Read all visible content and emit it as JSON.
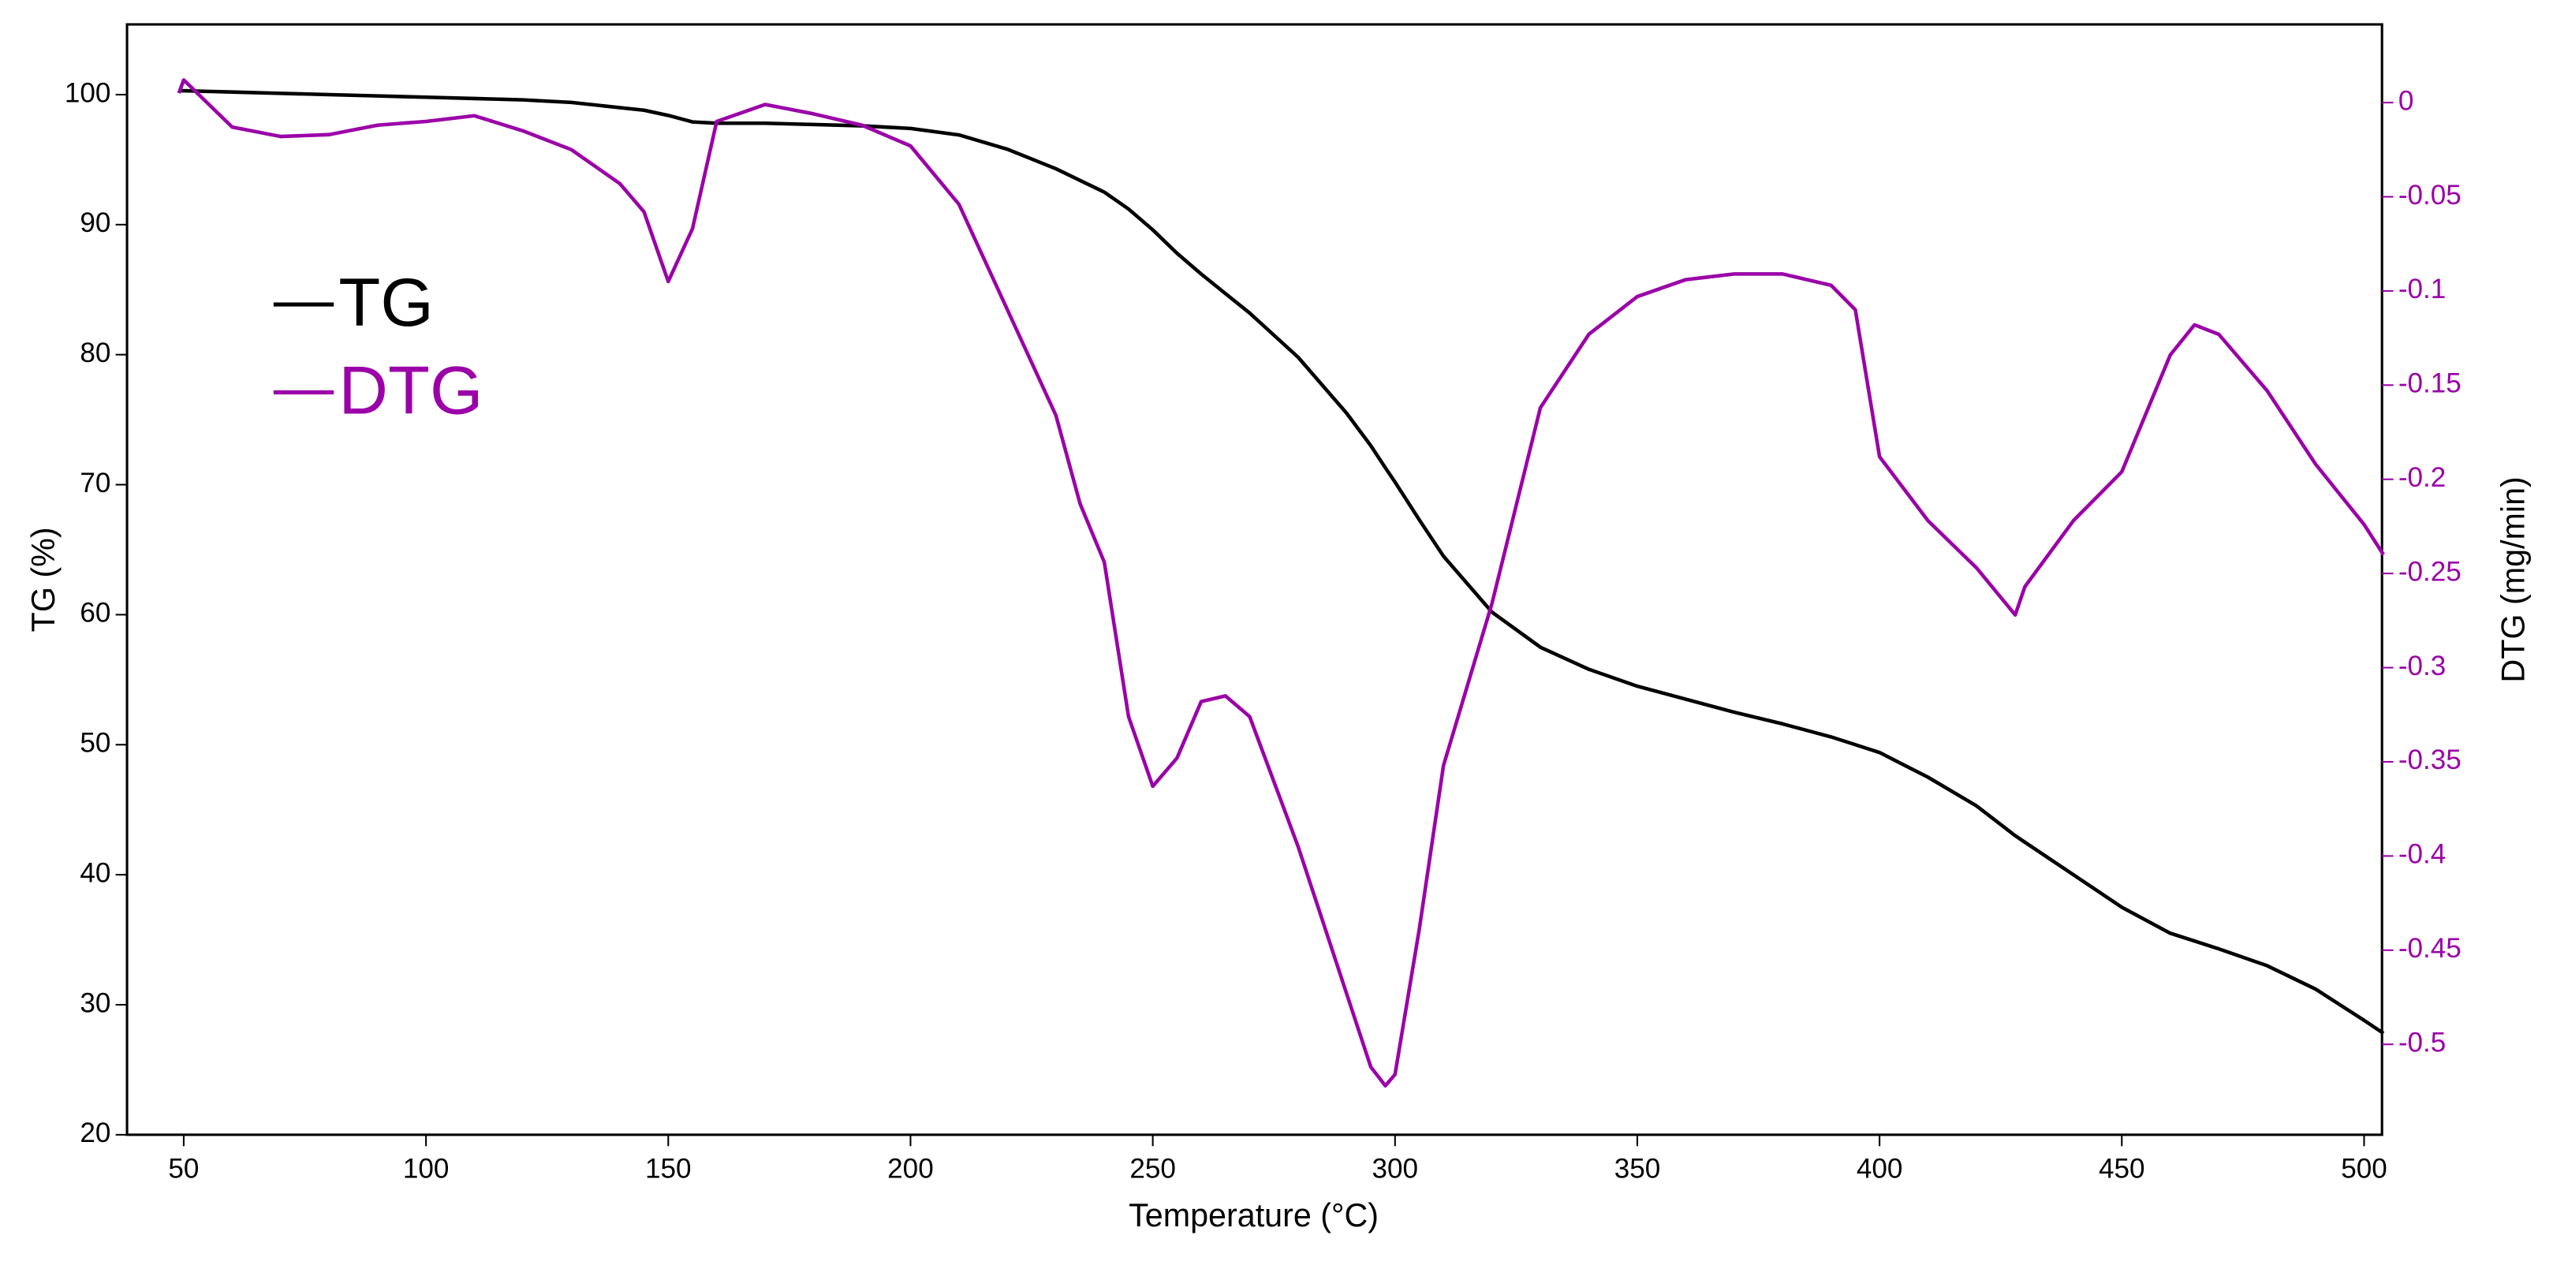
{
  "chart_data": {
    "type": "line",
    "x_label": "Temperature (°C)",
    "y_label": "TG (%)",
    "y2_label": "DTG (mg/min)",
    "x": [
      49,
      50,
      60,
      70,
      80,
      90,
      100,
      110,
      120,
      130,
      140,
      145,
      150,
      155,
      160,
      170,
      180,
      190,
      200,
      210,
      220,
      230,
      235,
      240,
      245,
      250,
      255,
      260,
      265,
      270,
      280,
      290,
      295,
      298,
      300,
      305,
      310,
      320,
      330,
      340,
      350,
      360,
      370,
      380,
      390,
      395,
      400,
      410,
      420,
      428,
      430,
      440,
      450,
      460,
      465,
      470,
      480,
      490,
      500,
      504
    ],
    "series": [
      {
        "name": "TG",
        "color": "#000000",
        "axis": "y",
        "values": [
          100.3,
          100.3,
          100.2,
          100.1,
          100,
          99.9,
          99.8,
          99.7,
          99.6,
          99.4,
          99,
          98.8,
          98.4,
          97.9,
          97.8,
          97.8,
          97.7,
          97.6,
          97.4,
          96.9,
          95.8,
          94.3,
          93.4,
          92.5,
          91.2,
          89.6,
          87.8,
          86.2,
          84.7,
          83.2,
          79.8,
          75.5,
          73,
          71.3,
          70.2,
          67.3,
          64.5,
          60.2,
          57.5,
          55.8,
          54.5,
          53.5,
          52.5,
          51.6,
          50.6,
          50,
          49.4,
          47.5,
          45.3,
          43,
          42.5,
          40,
          37.5,
          35.5,
          34.9,
          34.3,
          33,
          31.2,
          28.8,
          27.8
        ]
      },
      {
        "name": "DTG",
        "color": "#9b00a8",
        "axis": "y2",
        "values": [
          0.005,
          0.012,
          -0.013,
          -0.018,
          -0.017,
          -0.012,
          -0.01,
          -0.007,
          -0.015,
          -0.025,
          -0.043,
          -0.058,
          -0.095,
          -0.067,
          -0.01,
          -0.001,
          -0.006,
          -0.012,
          -0.023,
          -0.054,
          -0.11,
          -0.166,
          -0.213,
          -0.244,
          -0.326,
          -0.363,
          -0.348,
          -0.318,
          -0.315,
          -0.326,
          -0.395,
          -0.473,
          -0.512,
          -0.522,
          -0.516,
          -0.439,
          -0.352,
          -0.266,
          -0.162,
          -0.123,
          -0.103,
          -0.094,
          -0.091,
          -0.091,
          -0.097,
          -0.11,
          -0.188,
          -0.222,
          -0.247,
          -0.272,
          -0.257,
          -0.222,
          -0.196,
          -0.134,
          -0.118,
          -0.123,
          -0.153,
          -0.192,
          -0.224,
          -0.24
        ]
      }
    ],
    "xlim": [
      38.3,
      503.7
    ],
    "xticks": [
      50,
      100,
      150,
      200,
      250,
      300,
      350,
      400,
      450,
      500
    ],
    "ylim": [
      20,
      105.4
    ],
    "yticks": [
      20,
      30,
      40,
      50,
      60,
      70,
      80,
      90,
      100
    ],
    "y2lim": [
      -0.548,
      0.0415
    ],
    "y2ticks": [
      0,
      -0.05,
      -0.1,
      -0.15,
      -0.2,
      -0.25,
      -0.3,
      -0.35,
      -0.4,
      -0.45,
      -0.5
    ],
    "y2_tick_color": "#9b00a8",
    "grid": false,
    "legend": "upper left"
  }
}
